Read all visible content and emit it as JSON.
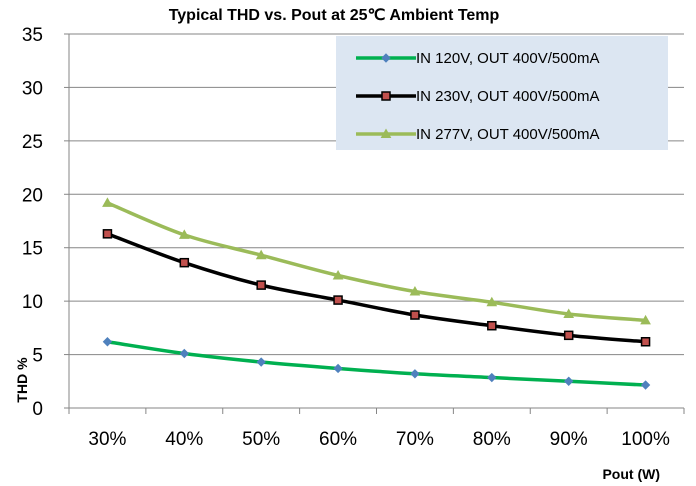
{
  "chart_data": {
    "type": "line",
    "title": "Typical THD vs. Pout at 25℃  Ambient Temp",
    "xlabel": "Pout (W)",
    "ylabel": "THD %",
    "categories": [
      "30%",
      "40%",
      "50%",
      "60%",
      "70%",
      "80%",
      "90%",
      "100%"
    ],
    "ylim": [
      0,
      35
    ],
    "yticks": [
      "0",
      "5",
      "10",
      "15",
      "20",
      "25",
      "30",
      "35"
    ],
    "grid": "horizontal",
    "legend_position": "top-right",
    "series": [
      {
        "name": "IN 120V, OUT 400V/500mA",
        "color": "#00b050",
        "marker": "diamond",
        "marker_color": "#4f81bd",
        "values": [
          6.2,
          5.1,
          4.3,
          3.7,
          3.2,
          2.85,
          2.5,
          2.15
        ]
      },
      {
        "name": "IN 230V, OUT 400V/500mA",
        "color": "#000000",
        "marker": "square",
        "marker_color": "#c0504d",
        "values": [
          16.3,
          13.6,
          11.5,
          10.1,
          8.7,
          7.7,
          6.8,
          6.2
        ]
      },
      {
        "name": "IN 277V, OUT 400V/500mA",
        "color": "#9bbb59",
        "marker": "triangle",
        "marker_color": "#9bbb59",
        "values": [
          19.2,
          16.2,
          14.3,
          12.4,
          10.9,
          9.9,
          8.8,
          8.2
        ]
      }
    ],
    "legend_background": "#dce6f2"
  }
}
